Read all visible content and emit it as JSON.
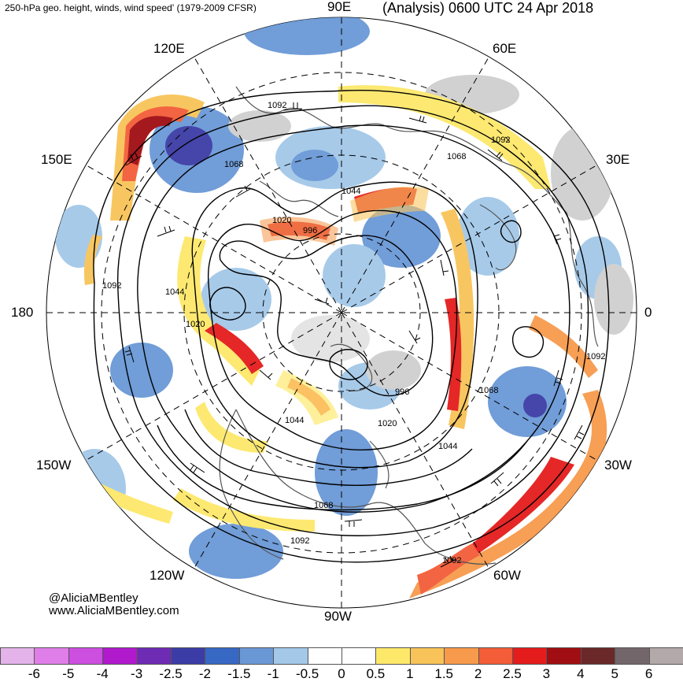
{
  "title": {
    "left": "250-hPa geo. height, winds, wind speed' (1979-2009 CFSR)",
    "right": "(Analysis) 0600 UTC 24 Apr 2018"
  },
  "longitude_labels": {
    "top": "90E",
    "top_left": "120E",
    "top_right": "60E",
    "left_upper": "150E",
    "right_upper": "30E",
    "left": "180",
    "right": "0",
    "left_lower": "150W",
    "right_lower": "30W",
    "bottom_left": "120W",
    "bottom_right": "60W",
    "bottom": "90W"
  },
  "contour_labels": [
    "1092",
    "1092",
    "1068",
    "1068",
    "1044",
    "1020",
    "996",
    "1092",
    "1044",
    "1020",
    "1020",
    "996",
    "1068",
    "1044",
    "1044",
    "1068",
    "1092",
    "1092",
    "1092"
  ],
  "credits": {
    "twitter": "@AliciaMBentley",
    "website": "www.AliciaMBentley.com"
  },
  "colorbar": {
    "ticks": [
      "-6",
      "-5",
      "-4",
      "-3",
      "-2.5",
      "-2",
      "-1.5",
      "-1",
      "-0.5",
      "0",
      "0.5",
      "1",
      "1.5",
      "2",
      "2.5",
      "3",
      "4",
      "5",
      "6"
    ],
    "colors": [
      "#e3b3e9",
      "#e07ee9",
      "#cc4fe0",
      "#b019cc",
      "#6e2bb4",
      "#3c3ca6",
      "#3668c4",
      "#6a98d6",
      "#a3c8e8",
      "#ffffff",
      "#ffffff",
      "#fde86a",
      "#f8c358",
      "#f79a4c",
      "#f35d38",
      "#e41c1c",
      "#a00d12",
      "#6a2828",
      "#73666a",
      "#b3a8aa"
    ]
  }
}
